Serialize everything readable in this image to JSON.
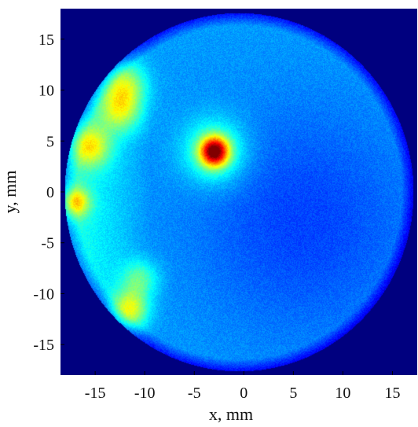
{
  "chart_data": {
    "type": "heatmap",
    "title": "",
    "xlabel": "x, mm",
    "ylabel": "y, mm",
    "xlim": [
      -18.5,
      17.5
    ],
    "ylim": [
      -18.0,
      18.0
    ],
    "x_ticks": [
      -15,
      -10,
      -5,
      0,
      5,
      10,
      15
    ],
    "y_ticks": [
      -15,
      -10,
      -5,
      0,
      5,
      10,
      15
    ],
    "x_tick_labels": [
      "-15",
      "-10",
      "-5",
      "0",
      "5",
      "10",
      "15"
    ],
    "y_tick_labels": [
      "-15",
      "-10",
      "-5",
      "0",
      "5",
      "10",
      "15"
    ],
    "grid": false,
    "colormap": "jet",
    "background_color": "#00007f",
    "aperture": {
      "shape": "circle",
      "center": [
        -0.5,
        0.0
      ],
      "radius_mm": 17.6
    },
    "base_level": 0.28,
    "hotspots": [
      {
        "x": -3.0,
        "y": 4.0,
        "sigma_mm": 1.0,
        "amplitude": 0.62
      },
      {
        "x": -3.0,
        "y": 4.0,
        "sigma_mm": 2.2,
        "amplitude": 0.22
      },
      {
        "x": -15.5,
        "y": 4.5,
        "sigma_mm": 1.4,
        "amplitude": 0.28
      },
      {
        "x": -17.0,
        "y": -1.0,
        "sigma_mm": 1.0,
        "amplitude": 0.3
      },
      {
        "x": -12.5,
        "y": 8.0,
        "sigma_mm": 1.5,
        "amplitude": 0.25
      },
      {
        "x": -12.0,
        "y": 10.5,
        "sigma_mm": 1.5,
        "amplitude": 0.24
      },
      {
        "x": -11.5,
        "y": -11.5,
        "sigma_mm": 1.3,
        "amplitude": 0.3
      },
      {
        "x": -10.5,
        "y": -8.5,
        "sigma_mm": 1.3,
        "amplitude": 0.18
      }
    ],
    "regions": [
      {
        "kind": "left-rim-band",
        "x_range": [
          -18,
          -9.5
        ],
        "amplitude": 0.14
      },
      {
        "kind": "right-depression",
        "center": [
          6.0,
          -3.0
        ],
        "sigma_mm": 8.0,
        "amplitude": -0.09
      }
    ]
  }
}
